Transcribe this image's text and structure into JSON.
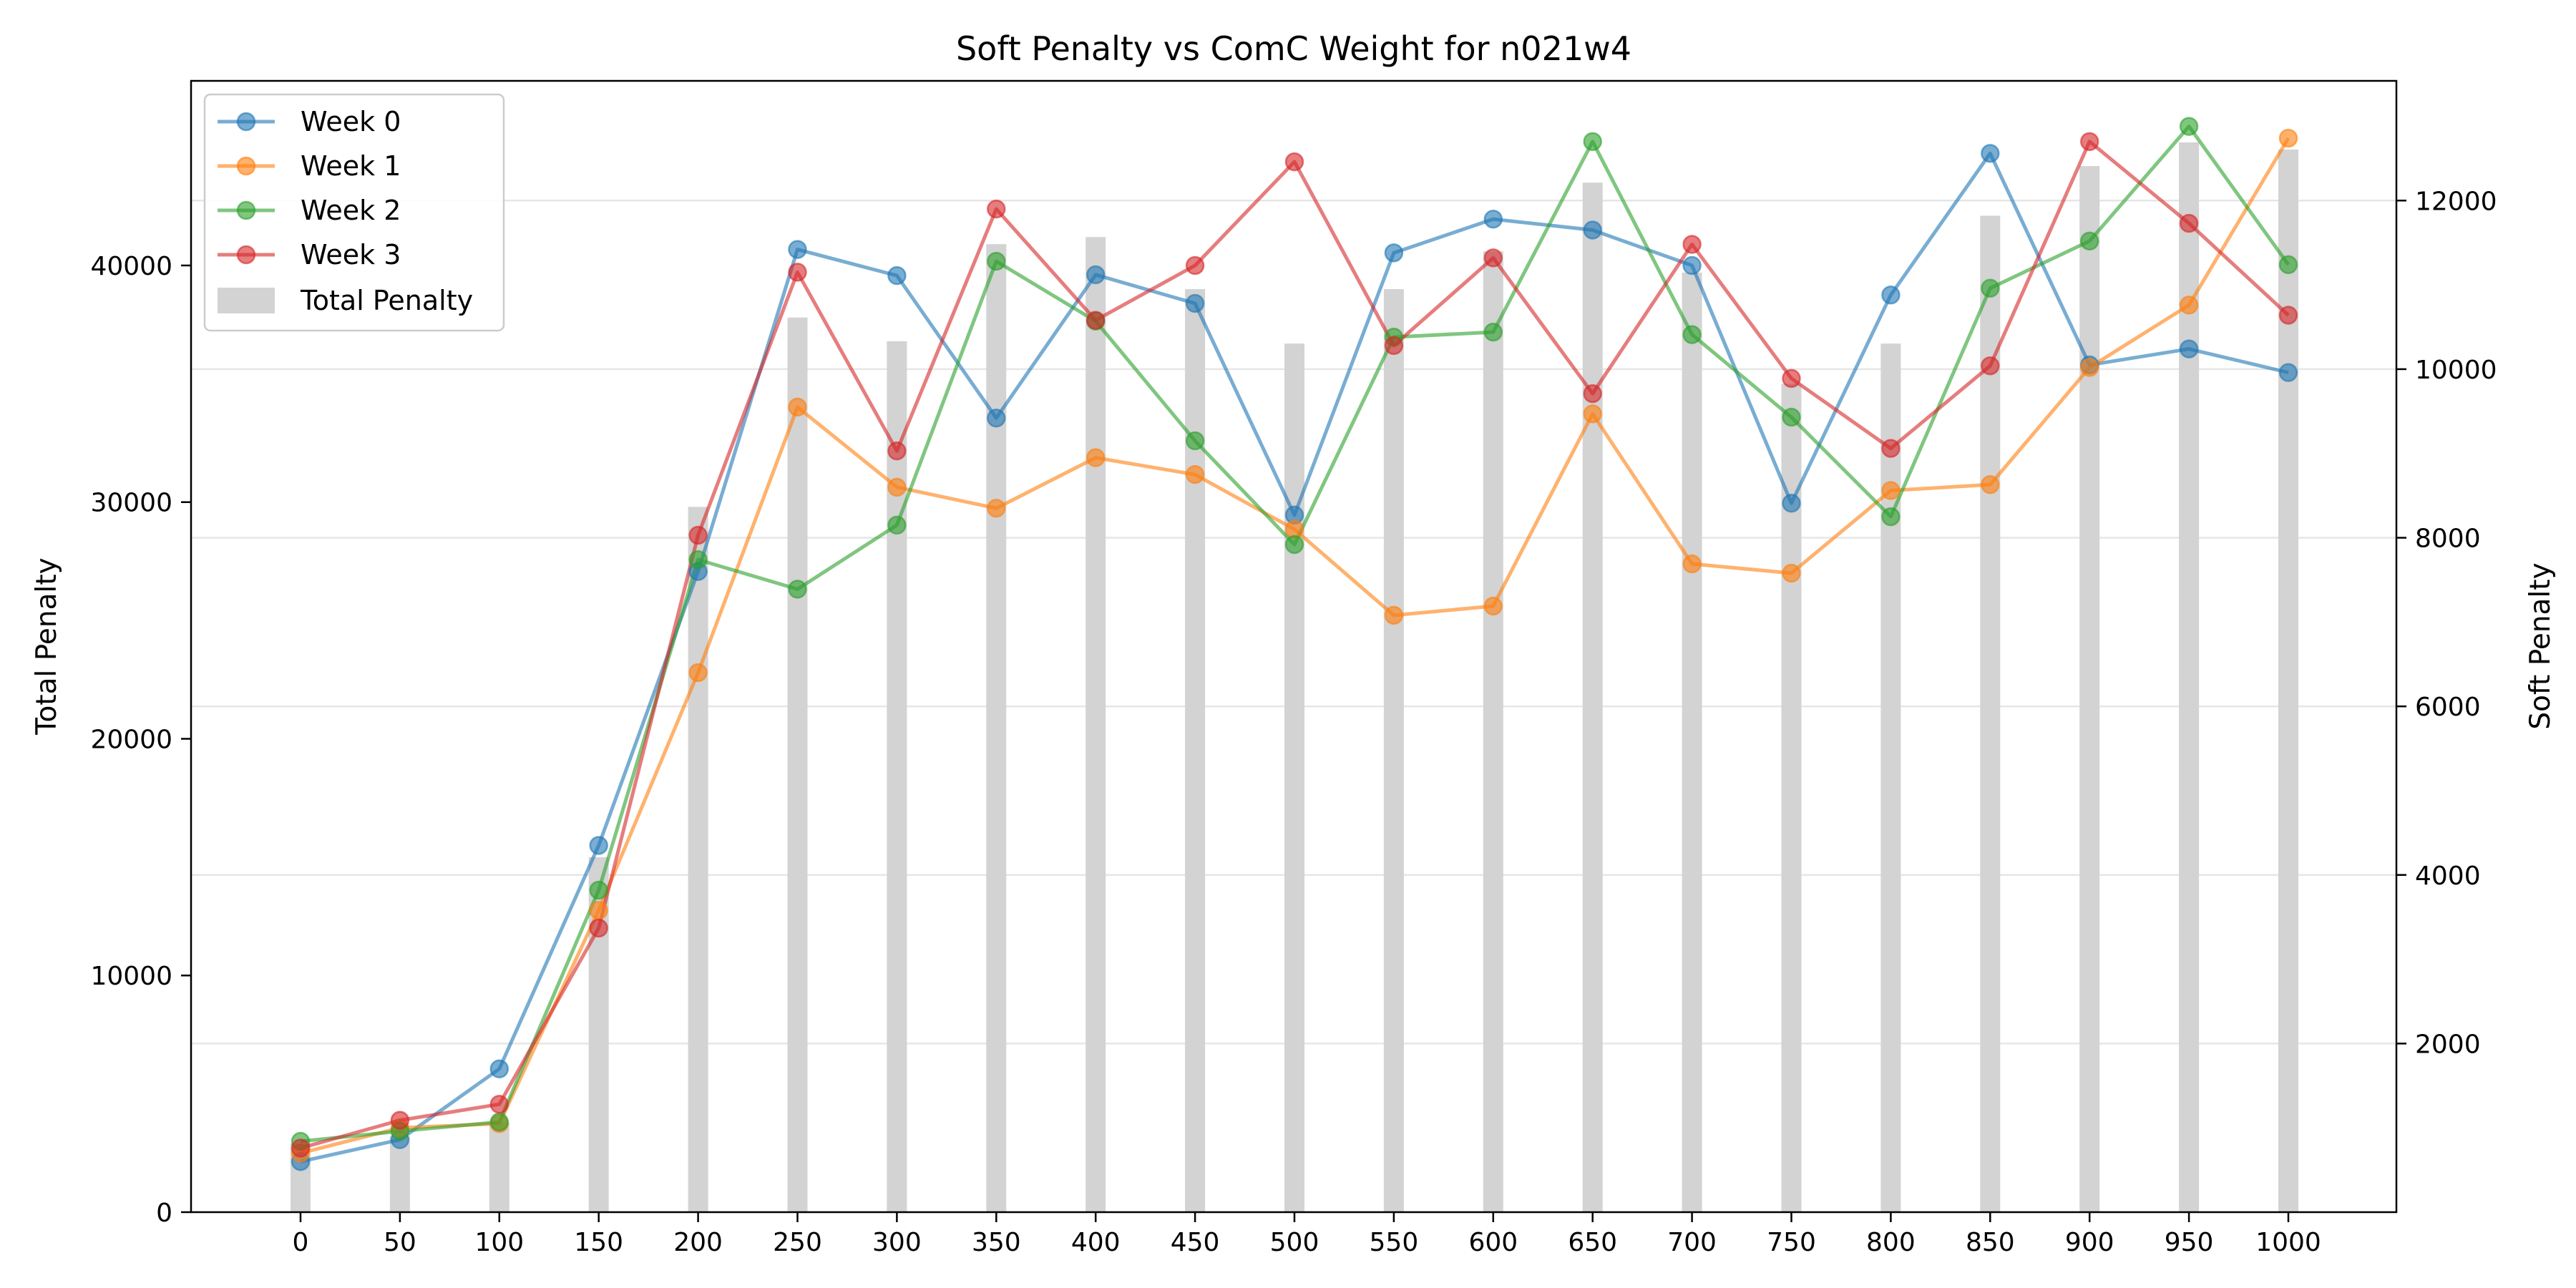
{
  "chart_data": {
    "type": "line",
    "title": "Soft Penalty vs ComC Weight for n021w4",
    "xlabel": "",
    "ylabel_left": "Total Penalty",
    "ylabel_right": "Soft Penalty",
    "x": [
      0,
      50,
      100,
      150,
      200,
      250,
      300,
      350,
      400,
      450,
      500,
      550,
      600,
      650,
      700,
      750,
      800,
      850,
      900,
      950,
      1000
    ],
    "x_ticks": [
      "0",
      "50",
      "100",
      "150",
      "200",
      "250",
      "300",
      "350",
      "400",
      "450",
      "500",
      "550",
      "600",
      "650",
      "700",
      "750",
      "800",
      "850",
      "900",
      "950",
      "1000"
    ],
    "y_left_range": [
      0,
      47800
    ],
    "y_left_ticks": [
      "0",
      "10000",
      "20000",
      "30000",
      "40000"
    ],
    "y_right_range": [
      0,
      13420
    ],
    "y_right_ticks": [
      "2000",
      "4000",
      "6000",
      "8000",
      "10000",
      "12000"
    ],
    "grid": "horizontal, right axis",
    "legend_position": "top-left",
    "bars": {
      "name": "Total Penalty",
      "color": "#d3d3d3",
      "values": [
        2900,
        3200,
        3800,
        15000,
        29800,
        37800,
        36800,
        40900,
        41200,
        39000,
        36700,
        39000,
        40600,
        43500,
        39700,
        35000,
        36700,
        42100,
        44200,
        45200,
        44900
      ]
    },
    "series": [
      {
        "name": "Week 0",
        "color": "#1f77b4",
        "values": [
          600,
          860,
          1700,
          4350,
          7600,
          11420,
          11110,
          9420,
          11120,
          10780,
          8270,
          11380,
          11780,
          11650,
          11230,
          8410,
          10880,
          12560,
          10050,
          10240,
          9960
        ]
      },
      {
        "name": "Week 1",
        "color": "#ff7f0e",
        "values": [
          700,
          1000,
          1050,
          3580,
          6400,
          9550,
          8600,
          8350,
          8950,
          8750,
          8100,
          7080,
          7190,
          9470,
          7690,
          7580,
          8560,
          8630,
          10020,
          10760,
          12740
        ]
      },
      {
        "name": "Week 2",
        "color": "#2ca02c",
        "values": [
          840,
          960,
          1070,
          3820,
          7740,
          7390,
          8150,
          11280,
          10570,
          9150,
          7920,
          10380,
          10440,
          12700,
          10410,
          9430,
          8250,
          10960,
          11520,
          12880,
          11240
        ]
      },
      {
        "name": "Week 3",
        "color": "#d62728",
        "values": [
          760,
          1090,
          1280,
          3370,
          8030,
          11150,
          9030,
          11900,
          10580,
          11230,
          12460,
          10280,
          11320,
          9710,
          11480,
          9890,
          9060,
          10040,
          12700,
          11730,
          10640
        ]
      }
    ]
  }
}
